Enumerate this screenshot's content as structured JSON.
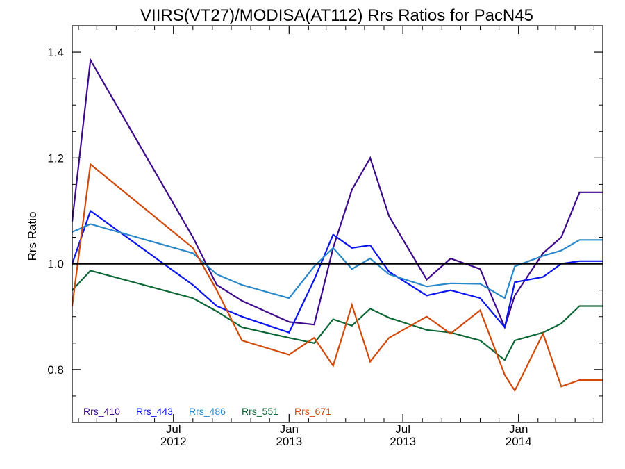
{
  "chart_data": {
    "type": "line",
    "title": "VIIRS(VT27)/MODISA(AT112)  Rrs Ratios for PacN45",
    "ylabel": "Rrs Ratio",
    "xlabel": "",
    "x_range": [
      "2012-01-22",
      "2014-05-15"
    ],
    "ylim": [
      0.7,
      1.45
    ],
    "y_ticks": [
      "0.8",
      "1.0",
      "1.2",
      "1.4"
    ],
    "x_ticks": [
      {
        "date": "2012-07-01",
        "month": "Jul",
        "year": "2012"
      },
      {
        "date": "2013-01-01",
        "month": "Jan",
        "year": "2013"
      },
      {
        "date": "2013-07-01",
        "month": "Jul",
        "year": "2013"
      },
      {
        "date": "2014-01-01",
        "month": "Jan",
        "year": "2014"
      }
    ],
    "reference_line": 1.0,
    "grid": false,
    "legend_position": "bottom-left",
    "x": [
      "2012-01-22",
      "2012-02-20",
      "2012-08-01",
      "2012-09-08",
      "2012-10-18",
      "2013-01-01",
      "2013-02-10",
      "2013-03-12",
      "2013-04-11",
      "2013-05-10",
      "2013-06-09",
      "2013-08-08",
      "2013-09-15",
      "2013-11-01",
      "2013-12-10",
      "2013-12-26",
      "2014-02-09",
      "2014-03-10",
      "2014-04-08",
      "2014-05-15"
    ],
    "series": [
      {
        "name": "Rrs_410",
        "color": "#3d0a8c",
        "values": [
          1.08,
          1.385,
          1.05,
          0.96,
          0.93,
          0.89,
          0.885,
          1.03,
          1.14,
          1.2,
          1.09,
          0.97,
          1.01,
          0.99,
          0.88,
          0.94,
          1.02,
          1.05,
          1.135,
          1.135
        ]
      },
      {
        "name": "Rrs_443",
        "color": "#0a14f0",
        "values": [
          1.0,
          1.1,
          0.96,
          0.92,
          0.9,
          0.87,
          0.97,
          1.055,
          1.03,
          1.035,
          0.985,
          0.94,
          0.95,
          0.935,
          0.88,
          0.965,
          0.975,
          1.0,
          1.005,
          1.005
        ]
      },
      {
        "name": "Rrs_486",
        "color": "#2a88c8",
        "values": [
          1.06,
          1.075,
          1.02,
          0.98,
          0.96,
          0.935,
          0.995,
          1.03,
          0.99,
          1.01,
          0.98,
          0.957,
          0.963,
          0.962,
          0.935,
          0.995,
          1.015,
          1.025,
          1.045,
          1.045
        ]
      },
      {
        "name": "Rrs_551",
        "color": "#0c6635",
        "values": [
          0.95,
          0.987,
          0.935,
          0.91,
          0.88,
          0.86,
          0.85,
          0.895,
          0.883,
          0.915,
          0.898,
          0.875,
          0.87,
          0.855,
          0.818,
          0.855,
          0.87,
          0.887,
          0.92,
          0.92
        ]
      },
      {
        "name": "Rrs_671",
        "color": "#d24a0a",
        "values": [
          0.92,
          1.188,
          1.03,
          0.95,
          0.855,
          0.828,
          0.86,
          0.807,
          0.922,
          0.815,
          0.86,
          0.9,
          0.868,
          0.912,
          0.79,
          0.76,
          0.868,
          0.768,
          0.78,
          0.78
        ]
      }
    ]
  }
}
